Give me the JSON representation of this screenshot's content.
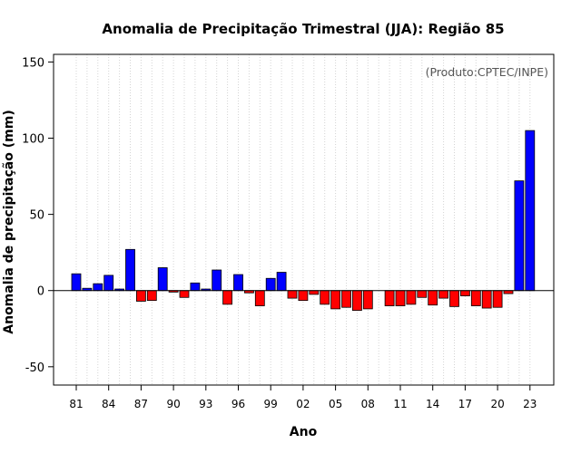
{
  "chart_data": {
    "type": "bar",
    "title": "Anomalia de Precipitação Trimestral (JJA): Região 85",
    "credit": "(Produto:CPTEC/INPE)",
    "xlabel": "Ano",
    "ylabel": "Anomalia de precipitação (mm)",
    "ylim": [
      -62,
      155
    ],
    "yticks": [
      -50,
      0,
      50,
      100,
      150
    ],
    "xtick_labels": [
      "81",
      "84",
      "87",
      "90",
      "93",
      "96",
      "99",
      "02",
      "05",
      "08",
      "11",
      "14",
      "17",
      "20",
      "23"
    ],
    "categories": [
      1981,
      1982,
      1983,
      1984,
      1985,
      1986,
      1987,
      1988,
      1989,
      1990,
      1991,
      1992,
      1993,
      1994,
      1995,
      1996,
      1997,
      1998,
      1999,
      2000,
      2001,
      2002,
      2003,
      2004,
      2005,
      2006,
      2007,
      2008,
      2009,
      2010,
      2011,
      2012,
      2013,
      2014,
      2015,
      2016,
      2017,
      2018,
      2019,
      2020,
      2021,
      2022,
      2023
    ],
    "values": [
      11,
      1.5,
      4.5,
      10,
      1,
      27,
      -7,
      -6.5,
      15,
      -1,
      -4.5,
      5,
      1,
      13.5,
      -9,
      10.5,
      -1.5,
      -10,
      8,
      12,
      -5,
      -6.5,
      -2.5,
      -9,
      -12,
      -11,
      -13,
      -12,
      0,
      -10,
      -10,
      -9,
      -4.5,
      -9.5,
      -5,
      -10.5,
      -3.5,
      -10,
      -11.5,
      -11,
      -2,
      72,
      105
    ],
    "colors": {
      "positive": "#0000ff",
      "negative": "#ff0000"
    },
    "grid": "vertical-dotted"
  }
}
